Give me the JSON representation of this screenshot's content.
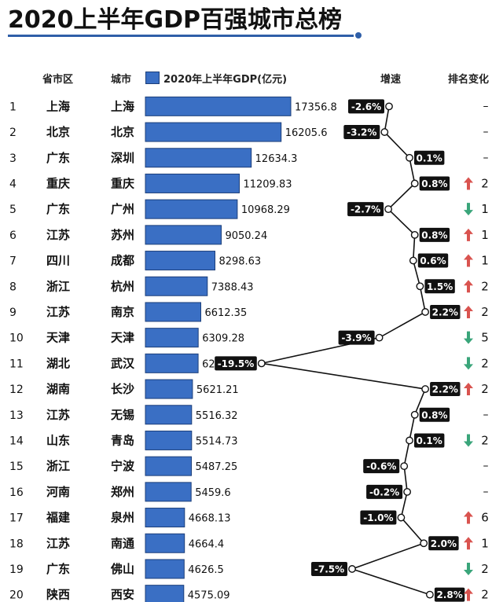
{
  "title": "2020上半年GDP百强城市总榜",
  "header": {
    "province": "省市区",
    "city": "城市",
    "gdp": "2020年上半年GDP(亿元)",
    "growth": "增速",
    "rank_change": "排名变化"
  },
  "colors": {
    "bar": "#3a6fc4",
    "bar_border": "#1c3f7a",
    "accent": "#2f5fa8",
    "up": "#d9534f",
    "down": "#3aa57a",
    "label_bg": "#111111"
  },
  "chart_data": {
    "type": "bar",
    "orientation": "horizontal",
    "title": "2020上半年GDP百强城市总榜",
    "series": [
      {
        "name": "2020年上半年GDP(亿元)"
      }
    ],
    "rows": [
      {
        "rank": "1",
        "province": "上海",
        "city": "上海",
        "gdp": 17356.8,
        "gdp_label": "17356.8",
        "growth": -2.6,
        "growth_label": "-2.6%",
        "change_dir": "none",
        "change_label": "–"
      },
      {
        "rank": "2",
        "province": "北京",
        "city": "北京",
        "gdp": 16205.6,
        "gdp_label": "16205.6",
        "growth": -3.2,
        "growth_label": "-3.2%",
        "change_dir": "none",
        "change_label": "–"
      },
      {
        "rank": "3",
        "province": "广东",
        "city": "深圳",
        "gdp": 12634.3,
        "gdp_label": "12634.3",
        "growth": 0.1,
        "growth_label": "0.1%",
        "change_dir": "none",
        "change_label": "–"
      },
      {
        "rank": "4",
        "province": "重庆",
        "city": "重庆",
        "gdp": 11209.83,
        "gdp_label": "11209.83",
        "growth": 0.8,
        "growth_label": "0.8%",
        "change_dir": "up",
        "change_label": "2"
      },
      {
        "rank": "5",
        "province": "广东",
        "city": "广州",
        "gdp": 10968.29,
        "gdp_label": "10968.29",
        "growth": -2.7,
        "growth_label": "-2.7%",
        "change_dir": "down",
        "change_label": "1"
      },
      {
        "rank": "6",
        "province": "江苏",
        "city": "苏州",
        "gdp": 9050.24,
        "gdp_label": "9050.24",
        "growth": 0.8,
        "growth_label": "0.8%",
        "change_dir": "up",
        "change_label": "1"
      },
      {
        "rank": "7",
        "province": "四川",
        "city": "成都",
        "gdp": 8298.63,
        "gdp_label": "8298.63",
        "growth": 0.6,
        "growth_label": "0.6%",
        "change_dir": "up",
        "change_label": "1"
      },
      {
        "rank": "8",
        "province": "浙江",
        "city": "杭州",
        "gdp": 7388.43,
        "gdp_label": "7388.43",
        "growth": 1.5,
        "growth_label": "1.5%",
        "change_dir": "up",
        "change_label": "2"
      },
      {
        "rank": "9",
        "province": "江苏",
        "city": "南京",
        "gdp": 6612.35,
        "gdp_label": "6612.35",
        "growth": 2.2,
        "growth_label": "2.2%",
        "change_dir": "up",
        "change_label": "2"
      },
      {
        "rank": "10",
        "province": "天津",
        "city": "天津",
        "gdp": 6309.28,
        "gdp_label": "6309.28",
        "growth": -3.9,
        "growth_label": "-3.9%",
        "change_dir": "down",
        "change_label": "5"
      },
      {
        "rank": "11",
        "province": "湖北",
        "city": "武汉",
        "gdp": 6295,
        "gdp_label": "6295",
        "growth": -19.5,
        "growth_label": "-19.5%",
        "change_dir": "down",
        "change_label": "2"
      },
      {
        "rank": "12",
        "province": "湖南",
        "city": "长沙",
        "gdp": 5621.21,
        "gdp_label": "5621.21",
        "growth": 2.2,
        "growth_label": "2.2%",
        "change_dir": "up",
        "change_label": "2"
      },
      {
        "rank": "13",
        "province": "江苏",
        "city": "无锡",
        "gdp": 5516.32,
        "gdp_label": "5516.32",
        "growth": 0.8,
        "growth_label": "0.8%",
        "change_dir": "none",
        "change_label": "–"
      },
      {
        "rank": "14",
        "province": "山东",
        "city": "青岛",
        "gdp": 5514.73,
        "gdp_label": "5514.73",
        "growth": 0.1,
        "growth_label": "0.1%",
        "change_dir": "down",
        "change_label": "2"
      },
      {
        "rank": "15",
        "province": "浙江",
        "city": "宁波",
        "gdp": 5487.25,
        "gdp_label": "5487.25",
        "growth": -0.6,
        "growth_label": "-0.6%",
        "change_dir": "none",
        "change_label": "–"
      },
      {
        "rank": "16",
        "province": "河南",
        "city": "郑州",
        "gdp": 5459.6,
        "gdp_label": "5459.6",
        "growth": -0.2,
        "growth_label": "-0.2%",
        "change_dir": "none",
        "change_label": "–"
      },
      {
        "rank": "17",
        "province": "福建",
        "city": "泉州",
        "gdp": 4668.13,
        "gdp_label": "4668.13",
        "growth": -1.0,
        "growth_label": "-1.0%",
        "change_dir": "up",
        "change_label": "6"
      },
      {
        "rank": "18",
        "province": "江苏",
        "city": "南通",
        "gdp": 4664.4,
        "gdp_label": "4664.4",
        "growth": 2.0,
        "growth_label": "2.0%",
        "change_dir": "up",
        "change_label": "1"
      },
      {
        "rank": "19",
        "province": "广东",
        "city": "佛山",
        "gdp": 4626.5,
        "gdp_label": "4626.5",
        "growth": -7.5,
        "growth_label": "-7.5%",
        "change_dir": "down",
        "change_label": "2"
      },
      {
        "rank": "20",
        "province": "陕西",
        "city": "西安",
        "gdp": 4575.09,
        "gdp_label": "4575.09",
        "growth": 2.8,
        "growth_label": "2.8%",
        "change_dir": "up",
        "change_label": "2"
      }
    ]
  }
}
